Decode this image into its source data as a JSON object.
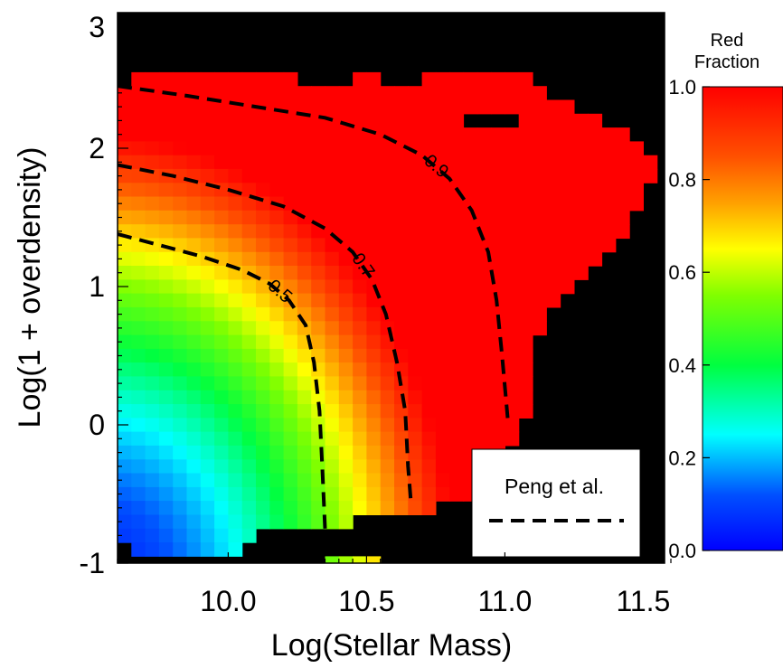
{
  "chart_data": {
    "type": "heatmap",
    "title": "",
    "xlabel": "Log(Stellar Mass)",
    "ylabel": "Log(1 + overdensity)",
    "xlim": [
      9.6,
      11.6
    ],
    "ylim": [
      -1.05,
      3.0
    ],
    "xticks": [
      10.0,
      10.5,
      11.0,
      11.5
    ],
    "xtick_labels": [
      "10.0",
      "10.5",
      "11.0",
      "11.5"
    ],
    "yticks": [
      -1,
      0,
      1,
      2,
      3
    ],
    "ytick_labels": [
      "-1",
      "0",
      "1",
      "2",
      "3"
    ],
    "background_color": "#000000",
    "grid": false,
    "colorbar": {
      "title_line1": "Red",
      "title_line2": "Fraction",
      "range": [
        0.0,
        1.0
      ],
      "ticks": [
        0.0,
        0.2,
        0.4,
        0.6,
        0.8,
        1.0
      ],
      "tick_labels": [
        "0.0",
        "0.2",
        "0.4",
        "0.6",
        "0.8",
        "1.0"
      ],
      "colormap": "rainbow (blue to red)"
    },
    "cell_size": {
      "mass": 0.05,
      "overdensity": 0.1
    },
    "coverage_rows": [
      {
        "y": 2.5,
        "from": 9.65,
        "to": 10.55
      },
      {
        "y": 2.5,
        "from": 10.7,
        "to": 11.1
      },
      {
        "y": 2.4,
        "from": 9.6,
        "to": 11.15
      },
      {
        "y": 2.3,
        "from": 9.6,
        "to": 11.25
      },
      {
        "y": 2.2,
        "from": 9.6,
        "to": 11.35
      },
      {
        "y": 2.1,
        "from": 9.6,
        "to": 11.45
      },
      {
        "y": 2.0,
        "from": 9.6,
        "to": 11.5
      },
      {
        "y": 1.9,
        "from": 9.6,
        "to": 11.55
      },
      {
        "y": 1.8,
        "from": 9.6,
        "to": 11.55
      },
      {
        "y": 1.7,
        "from": 9.6,
        "to": 11.5
      },
      {
        "y": 1.6,
        "from": 9.6,
        "to": 11.5
      },
      {
        "y": 1.5,
        "from": 9.6,
        "to": 11.45
      },
      {
        "y": 1.4,
        "from": 9.6,
        "to": 11.45
      },
      {
        "y": 1.3,
        "from": 9.6,
        "to": 11.4
      },
      {
        "y": 1.2,
        "from": 9.6,
        "to": 11.35
      },
      {
        "y": 1.1,
        "from": 9.6,
        "to": 11.3
      },
      {
        "y": 1.0,
        "from": 9.6,
        "to": 11.25
      },
      {
        "y": 0.9,
        "from": 9.6,
        "to": 11.2
      },
      {
        "y": 0.8,
        "from": 9.6,
        "to": 11.15
      },
      {
        "y": 0.7,
        "from": 9.6,
        "to": 11.15
      },
      {
        "y": 0.6,
        "from": 9.6,
        "to": 11.1
      },
      {
        "y": 0.5,
        "from": 9.6,
        "to": 11.1
      },
      {
        "y": 0.4,
        "from": 9.6,
        "to": 11.1
      },
      {
        "y": 0.3,
        "from": 9.6,
        "to": 11.1
      },
      {
        "y": 0.2,
        "from": 9.6,
        "to": 11.1
      },
      {
        "y": 0.1,
        "from": 9.6,
        "to": 11.1
      },
      {
        "y": 0.0,
        "from": 9.6,
        "to": 11.05
      },
      {
        "y": -0.1,
        "from": 9.6,
        "to": 11.05
      },
      {
        "y": -0.2,
        "from": 9.6,
        "to": 11.0
      },
      {
        "y": -0.3,
        "from": 9.6,
        "to": 11.0
      },
      {
        "y": -0.4,
        "from": 9.6,
        "to": 11.0
      },
      {
        "y": -0.5,
        "from": 9.6,
        "to": 10.9
      },
      {
        "y": -0.6,
        "from": 9.6,
        "to": 10.75
      },
      {
        "y": -0.7,
        "from": 9.6,
        "to": 10.45
      },
      {
        "y": -0.8,
        "from": 9.6,
        "to": 10.1
      },
      {
        "y": -0.9,
        "from": 9.65,
        "to": 10.05
      },
      {
        "y": -1.0,
        "from": 10.35,
        "to": 10.55
      }
    ],
    "contours": [
      {
        "level": 0.5,
        "label": "0.5",
        "points": [
          [
            9.6,
            1.38
          ],
          [
            9.75,
            1.3
          ],
          [
            9.9,
            1.22
          ],
          [
            10.05,
            1.12
          ],
          [
            10.15,
            1.02
          ],
          [
            10.22,
            0.9
          ],
          [
            10.28,
            0.72
          ],
          [
            10.31,
            0.45
          ],
          [
            10.33,
            0.1
          ],
          [
            10.34,
            -0.3
          ],
          [
            10.35,
            -0.75
          ]
        ]
      },
      {
        "level": 0.7,
        "label": "0.7",
        "points": [
          [
            9.6,
            1.88
          ],
          [
            9.8,
            1.8
          ],
          [
            10.0,
            1.7
          ],
          [
            10.2,
            1.58
          ],
          [
            10.35,
            1.42
          ],
          [
            10.45,
            1.25
          ],
          [
            10.52,
            1.05
          ],
          [
            10.57,
            0.8
          ],
          [
            10.61,
            0.45
          ],
          [
            10.64,
            0.1
          ],
          [
            10.65,
            -0.3
          ],
          [
            10.66,
            -0.55
          ]
        ]
      },
      {
        "level": 0.9,
        "label": "0.9",
        "points": [
          [
            9.6,
            2.45
          ],
          [
            9.85,
            2.38
          ],
          [
            10.1,
            2.3
          ],
          [
            10.35,
            2.22
          ],
          [
            10.55,
            2.1
          ],
          [
            10.7,
            1.95
          ],
          [
            10.8,
            1.78
          ],
          [
            10.88,
            1.55
          ],
          [
            10.94,
            1.25
          ],
          [
            10.97,
            0.9
          ],
          [
            10.99,
            0.5
          ],
          [
            11.01,
            0.05
          ]
        ]
      }
    ],
    "gaps": [
      {
        "x": [
          10.25,
          10.45
        ],
        "y": [
          2.45,
          2.65
        ]
      },
      {
        "x": [
          10.85,
          11.05
        ],
        "y": [
          2.15,
          2.25
        ]
      },
      {
        "x": [
          11.15,
          11.25
        ],
        "y": [
          2.35,
          2.45
        ]
      }
    ],
    "legend": {
      "position": "bottom-right",
      "label": "Peng et al.",
      "line_style": "dashed"
    }
  },
  "colors": {
    "plot_background": "#000000",
    "contour_line": "#000000",
    "legend_background": "#ffffff"
  }
}
